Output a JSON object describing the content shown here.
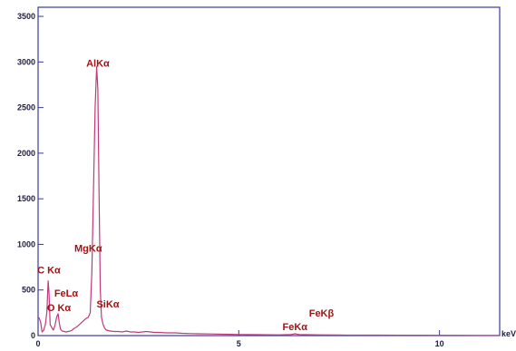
{
  "chart_data": {
    "type": "line",
    "title": "",
    "xlabel": "keV",
    "ylabel": "",
    "xlim": [
      0,
      11.5
    ],
    "ylim": [
      0,
      3600
    ],
    "x_ticks": [
      {
        "value": 0,
        "label": "0"
      },
      {
        "value": 5,
        "label": "5"
      },
      {
        "value": 10,
        "label": "10"
      }
    ],
    "y_ticks": [
      {
        "value": 0,
        "label": "0"
      },
      {
        "value": 500,
        "label": "500"
      },
      {
        "value": 1000,
        "label": "1000"
      },
      {
        "value": 1500,
        "label": "1500"
      },
      {
        "value": 2000,
        "label": "2000"
      },
      {
        "value": 2500,
        "label": "2500"
      },
      {
        "value": 3000,
        "label": "3000"
      },
      {
        "value": 3500,
        "label": "3500"
      }
    ],
    "grid": false,
    "colors": {
      "spectrum": "#c0397a",
      "axes": "#3a3aa0",
      "peak_labels": "#a01414"
    },
    "series": [
      {
        "x": [
          0.02,
          0.06,
          0.1,
          0.14,
          0.18,
          0.22,
          0.25,
          0.27,
          0.3,
          0.34,
          0.38,
          0.42,
          0.46,
          0.5,
          0.53,
          0.56,
          0.6,
          0.65,
          0.7,
          0.75,
          0.8,
          0.85,
          0.9,
          0.95,
          1.0,
          1.05,
          1.1,
          1.15,
          1.2,
          1.25,
          1.3,
          1.34,
          1.38,
          1.42,
          1.46,
          1.49,
          1.52,
          1.55,
          1.58,
          1.62,
          1.66,
          1.7,
          1.75,
          1.8,
          1.9,
          2.0,
          2.1,
          2.2,
          2.3,
          2.4,
          2.5,
          2.6,
          2.7,
          2.8,
          2.9,
          3.0,
          3.2,
          3.4,
          3.6,
          3.8,
          4.0,
          4.3,
          4.6,
          5.0,
          5.5,
          6.0,
          6.3,
          6.4,
          6.5,
          6.7,
          7.0,
          7.5,
          8.0,
          8.5,
          9.0,
          9.5,
          10.0,
          10.5,
          11.0,
          11.5
        ],
        "y": [
          200,
          150,
          40,
          60,
          120,
          260,
          600,
          480,
          120,
          90,
          60,
          110,
          200,
          240,
          130,
          70,
          50,
          45,
          40,
          45,
          50,
          60,
          80,
          90,
          110,
          130,
          150,
          170,
          190,
          200,
          250,
          700,
          1600,
          2500,
          2950,
          2700,
          1500,
          500,
          200,
          120,
          80,
          60,
          55,
          50,
          45,
          45,
          40,
          50,
          40,
          40,
          35,
          40,
          45,
          40,
          35,
          35,
          30,
          30,
          25,
          22,
          20,
          18,
          15,
          12,
          10,
          8,
          12,
          20,
          12,
          10,
          8,
          6,
          5,
          5,
          4,
          4,
          3,
          3,
          2,
          2
        ]
      }
    ],
    "peak_labels": [
      {
        "text": "AlKα",
        "x": 1.49,
        "y": 2950
      },
      {
        "text": "MgKα",
        "x": 1.25,
        "y": 920
      },
      {
        "text": "C Kα",
        "x": 0.27,
        "y": 680
      },
      {
        "text": "FeLα",
        "x": 0.7,
        "y": 430
      },
      {
        "text": "O Kα",
        "x": 0.52,
        "y": 270
      },
      {
        "text": "SiKα",
        "x": 1.74,
        "y": 310
      },
      {
        "text": "FeKβ",
        "x": 7.06,
        "y": 210
      },
      {
        "text": "FeKα",
        "x": 6.4,
        "y": 60
      }
    ]
  }
}
